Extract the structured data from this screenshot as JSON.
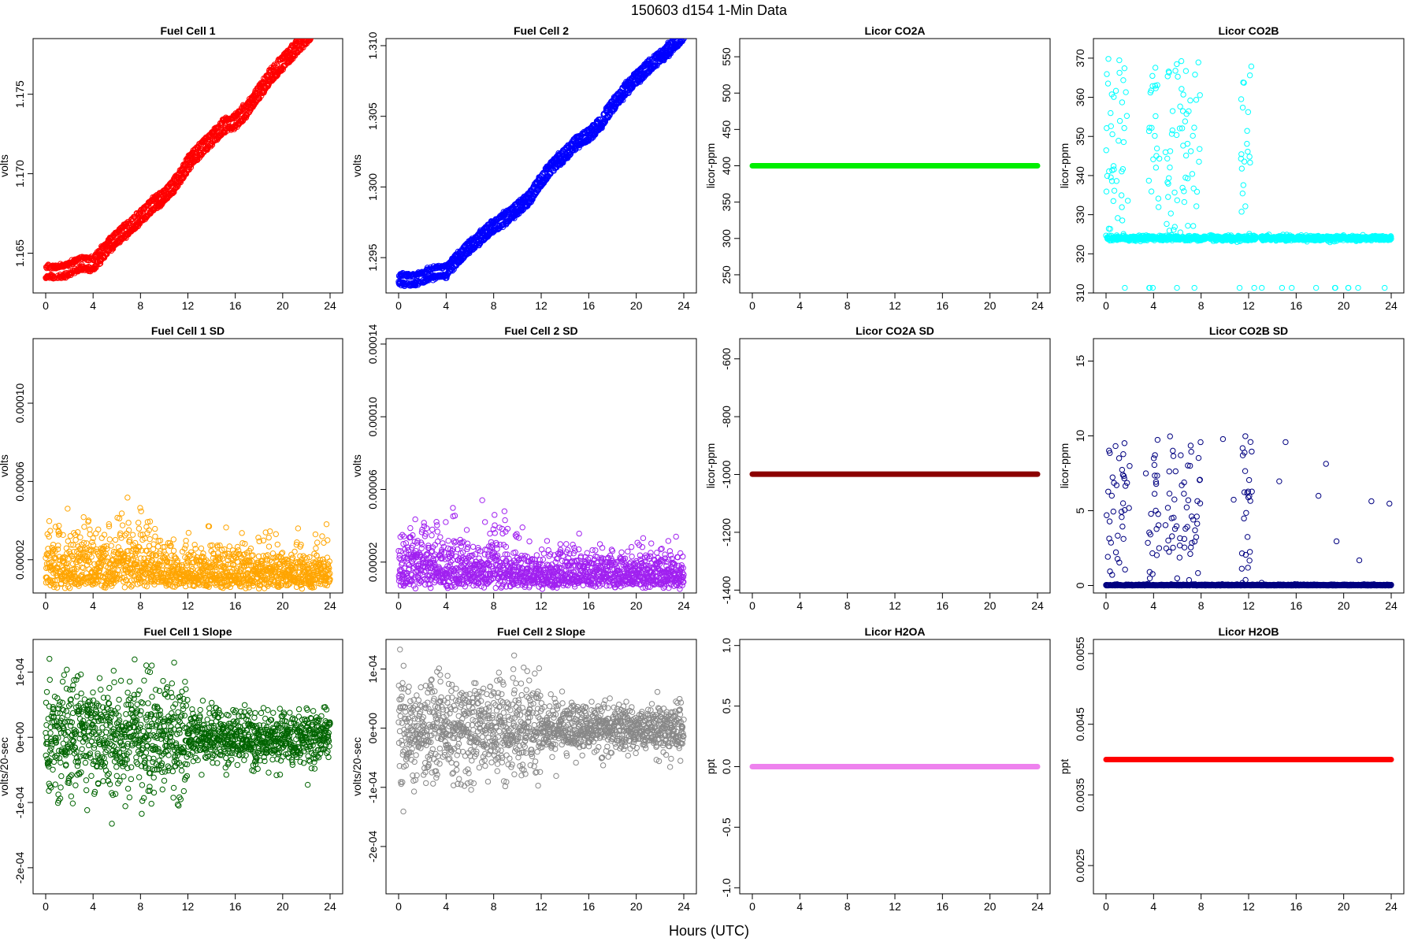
{
  "figure": {
    "title": "150603    d154    1-Min Data",
    "xlabel": "Hours (UTC)",
    "x_ticks": [
      0,
      4,
      8,
      12,
      16,
      20,
      24
    ]
  },
  "chart_data": [
    {
      "type": "scatter",
      "title": "Fuel Cell 1",
      "ylabel": "volts",
      "color": "#ff0000",
      "xlim": [
        0,
        24
      ],
      "ylim": [
        1.1625,
        1.1785
      ],
      "y_ticks": [
        1.165,
        1.17,
        1.175
      ],
      "y_tick_labels": [
        "1.165",
        "1.170",
        "1.175"
      ],
      "trend": [
        [
          0,
          1.1638
        ],
        [
          1,
          1.1638
        ],
        [
          2,
          1.164
        ],
        [
          3,
          1.1644
        ],
        [
          4,
          1.1643
        ],
        [
          5,
          1.1652
        ],
        [
          6,
          1.166
        ],
        [
          7,
          1.1666
        ],
        [
          8,
          1.1673
        ],
        [
          9,
          1.168
        ],
        [
          10,
          1.1686
        ],
        [
          11,
          1.1694
        ],
        [
          12,
          1.1706
        ],
        [
          13,
          1.1715
        ],
        [
          14,
          1.1722
        ],
        [
          15,
          1.173
        ],
        [
          16,
          1.1733
        ],
        [
          17,
          1.174
        ],
        [
          18,
          1.1751
        ],
        [
          19,
          1.1762
        ],
        [
          20,
          1.177
        ],
        [
          21,
          1.1778
        ],
        [
          22,
          1.1786
        ],
        [
          23,
          1.1794
        ],
        [
          24,
          1.1805
        ]
      ],
      "band": 0.0004,
      "n_points": 1440
    },
    {
      "type": "scatter",
      "title": "Fuel Cell 2",
      "ylabel": "volts",
      "color": "#0000ff",
      "xlim": [
        0,
        24
      ],
      "ylim": [
        1.2925,
        1.3105
      ],
      "y_ticks": [
        1.295,
        1.3,
        1.305,
        1.31
      ],
      "y_tick_labels": [
        "1.295",
        "1.300",
        "1.305",
        "1.310"
      ],
      "trend": [
        [
          0,
          1.2935
        ],
        [
          1,
          1.2934
        ],
        [
          2,
          1.2936
        ],
        [
          3,
          1.294
        ],
        [
          4,
          1.294
        ],
        [
          5,
          1.295
        ],
        [
          6,
          1.2958
        ],
        [
          7,
          1.2965
        ],
        [
          8,
          1.2972
        ],
        [
          9,
          1.2978
        ],
        [
          10,
          1.2985
        ],
        [
          11,
          1.2992
        ],
        [
          12,
          1.3005
        ],
        [
          13,
          1.3015
        ],
        [
          14,
          1.3023
        ],
        [
          15,
          1.3032
        ],
        [
          16,
          1.3037
        ],
        [
          17,
          1.3045
        ],
        [
          18,
          1.3058
        ],
        [
          19,
          1.3068
        ],
        [
          20,
          1.3077
        ],
        [
          21,
          1.3085
        ],
        [
          22,
          1.3092
        ],
        [
          23,
          1.31
        ],
        [
          24,
          1.3108
        ]
      ],
      "band": 0.0004,
      "n_points": 1440
    },
    {
      "type": "line",
      "title": "Licor CO2A",
      "ylabel": "licor-ppm",
      "color": "#00ee00",
      "xlim": [
        0,
        24
      ],
      "ylim": [
        225,
        575
      ],
      "y_ticks": [
        250,
        300,
        350,
        400,
        450,
        500,
        550
      ],
      "y_tick_labels": [
        "250",
        "300",
        "350",
        "400",
        "450",
        "500",
        "550"
      ],
      "constant": 400
    },
    {
      "type": "scatter",
      "title": "Licor CO2B",
      "ylabel": "licor-ppm",
      "color": "#00ffff",
      "xlim": [
        0,
        24
      ],
      "ylim": [
        310,
        375
      ],
      "y_ticks": [
        310,
        320,
        330,
        340,
        350,
        360,
        370
      ],
      "y_tick_labels": [
        "310",
        "320",
        "330",
        "340",
        "350",
        "360",
        "370"
      ],
      "baseline": 324,
      "bursts": [
        [
          0,
          2
        ],
        [
          3.5,
          4.5
        ],
        [
          5,
          8
        ],
        [
          11.3,
          12.3
        ]
      ],
      "gaps": [
        [
          8.4,
          8.7
        ],
        [
          12.6,
          13.0
        ]
      ],
      "n_points": 1440
    },
    {
      "type": "scatter",
      "title": "Fuel Cell 1 SD",
      "ylabel": "volts",
      "color": "#ffa500",
      "xlim": [
        0,
        24
      ],
      "ylim": [
        3e-06,
        0.000133
      ],
      "y_ticks": [
        2e-05,
        6e-05,
        0.0001
      ],
      "y_tick_labels": [
        "0.00002",
        "0.00006",
        "0.00010"
      ],
      "scale": 9e-06,
      "floor": 5e-06,
      "n_points": 1440
    },
    {
      "type": "scatter",
      "title": "Fuel Cell 2 SD",
      "ylabel": "volts",
      "color": "#a020f0",
      "xlim": [
        0,
        24
      ],
      "ylim": [
        3e-06,
        0.000143
      ],
      "y_ticks": [
        2e-05,
        6e-05,
        0.0001,
        0.00014
      ],
      "y_tick_labels": [
        "0.00002",
        "0.00006",
        "0.00010",
        "0.00014"
      ],
      "scale": 9e-06,
      "floor": 5e-06,
      "n_points": 1440
    },
    {
      "type": "line",
      "title": "Licor CO2A SD",
      "ylabel": "licor-ppm",
      "color": "#8b0000",
      "xlim": [
        0,
        24
      ],
      "ylim": [
        -1410,
        -530
      ],
      "y_ticks": [
        -1400,
        -1200,
        -1000,
        -800,
        -600
      ],
      "y_tick_labels": [
        "-1400",
        "-1200",
        "-1000",
        "-800",
        "-600"
      ],
      "constant": -999
    },
    {
      "type": "scatter",
      "title": "Licor CO2B SD",
      "ylabel": "licor-ppm",
      "color": "#000080",
      "xlim": [
        0,
        24
      ],
      "ylim": [
        -0.5,
        16.5
      ],
      "y_ticks": [
        0,
        5,
        10,
        15
      ],
      "y_tick_labels": [
        "0",
        "5",
        "10",
        "15"
      ],
      "baseline": 0,
      "bursts": [
        [
          0,
          2
        ],
        [
          3.5,
          4.5
        ],
        [
          5,
          8
        ],
        [
          11.3,
          12.3
        ]
      ],
      "n_points": 1440
    },
    {
      "type": "scatter",
      "title": "Fuel Cell 1 Slope",
      "ylabel": "volts/20-sec",
      "color": "#006400",
      "xlim": [
        0,
        24
      ],
      "ylim": [
        -0.00024,
        0.00015
      ],
      "y_ticks": [
        -0.0002,
        -0.0001,
        0,
        0.0001
      ],
      "y_tick_labels": [
        "-2e-04",
        "-1e-04",
        "0e+00",
        "1e-04"
      ],
      "scale": 3e-05,
      "n_points": 1440
    },
    {
      "type": "scatter",
      "title": "Fuel Cell 2 Slope",
      "ylabel": "volts/20-sec",
      "color": "#888888",
      "xlim": [
        0,
        24
      ],
      "ylim": [
        -0.00028,
        0.00015
      ],
      "y_ticks": [
        -0.0002,
        -0.0001,
        0,
        0.0001
      ],
      "y_tick_labels": [
        "-2e-04",
        "-1e-04",
        "0e+00",
        "1e-04"
      ],
      "scale": 3e-05,
      "n_points": 1440
    },
    {
      "type": "line",
      "title": "Licor H2OA",
      "ylabel": "ppt",
      "color": "#ee82ee",
      "xlim": [
        0,
        24
      ],
      "ylim": [
        -1.05,
        1.05
      ],
      "y_ticks": [
        -1.0,
        -0.5,
        0.0,
        0.5,
        1.0
      ],
      "y_tick_labels": [
        "-1.0",
        "-0.5",
        "0.0",
        "0.5",
        "1.0"
      ],
      "constant": 0
    },
    {
      "type": "line",
      "title": "Licor H2OB",
      "ylabel": "ppt",
      "color": "#ff0000",
      "xlim": [
        0,
        24
      ],
      "ylim": [
        0.0021,
        0.0057
      ],
      "y_ticks": [
        0.0025,
        0.0035,
        0.0045,
        0.0055
      ],
      "y_tick_labels": [
        "0.0025",
        "0.0035",
        "0.0045",
        "0.0055"
      ],
      "constant": 0.004
    }
  ]
}
